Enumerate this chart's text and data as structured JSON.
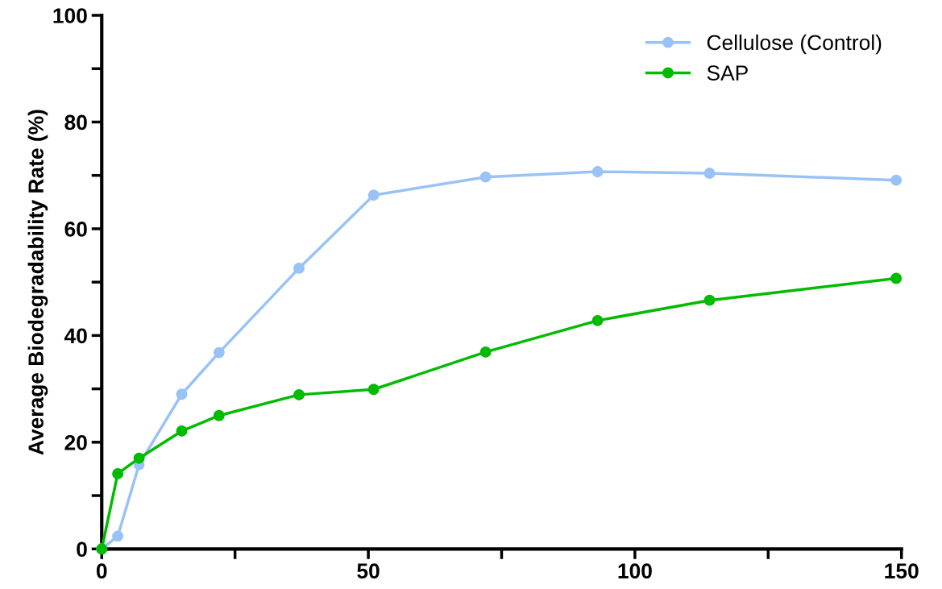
{
  "chart_data": {
    "type": "line",
    "ylabel": "Average Biodegradability Rate (%)",
    "x": [
      0,
      3,
      7,
      15,
      22,
      37,
      51,
      72,
      93,
      114,
      149
    ],
    "series": [
      {
        "name": "Cellulose (Control)",
        "color": "#99c2f7",
        "values": [
          0,
          2.4,
          15.8,
          29.0,
          36.8,
          52.6,
          66.3,
          69.7,
          70.7,
          70.4,
          69.1
        ]
      },
      {
        "name": "SAP",
        "color": "#00bb00",
        "values": [
          0,
          14.1,
          17.0,
          22.1,
          25.0,
          28.9,
          29.9,
          36.9,
          42.8,
          46.6,
          50.7
        ]
      }
    ],
    "xlim": [
      0,
      150
    ],
    "ylim": [
      0,
      100
    ],
    "xticks": [
      0,
      {
        "value": 25,
        "label": null
      },
      50,
      {
        "value": 75,
        "label": null
      },
      100,
      {
        "value": 125,
        "label": null
      },
      150
    ],
    "yticks": [
      0,
      {
        "value": 10,
        "label": null
      },
      20,
      {
        "value": 30,
        "label": null
      },
      40,
      {
        "value": 50,
        "label": null
      },
      60,
      {
        "value": 70,
        "label": null
      },
      80,
      {
        "value": 90,
        "label": null
      },
      100
    ],
    "grid": false,
    "legend": "top right",
    "marker": "circle",
    "line_style": "solid"
  }
}
